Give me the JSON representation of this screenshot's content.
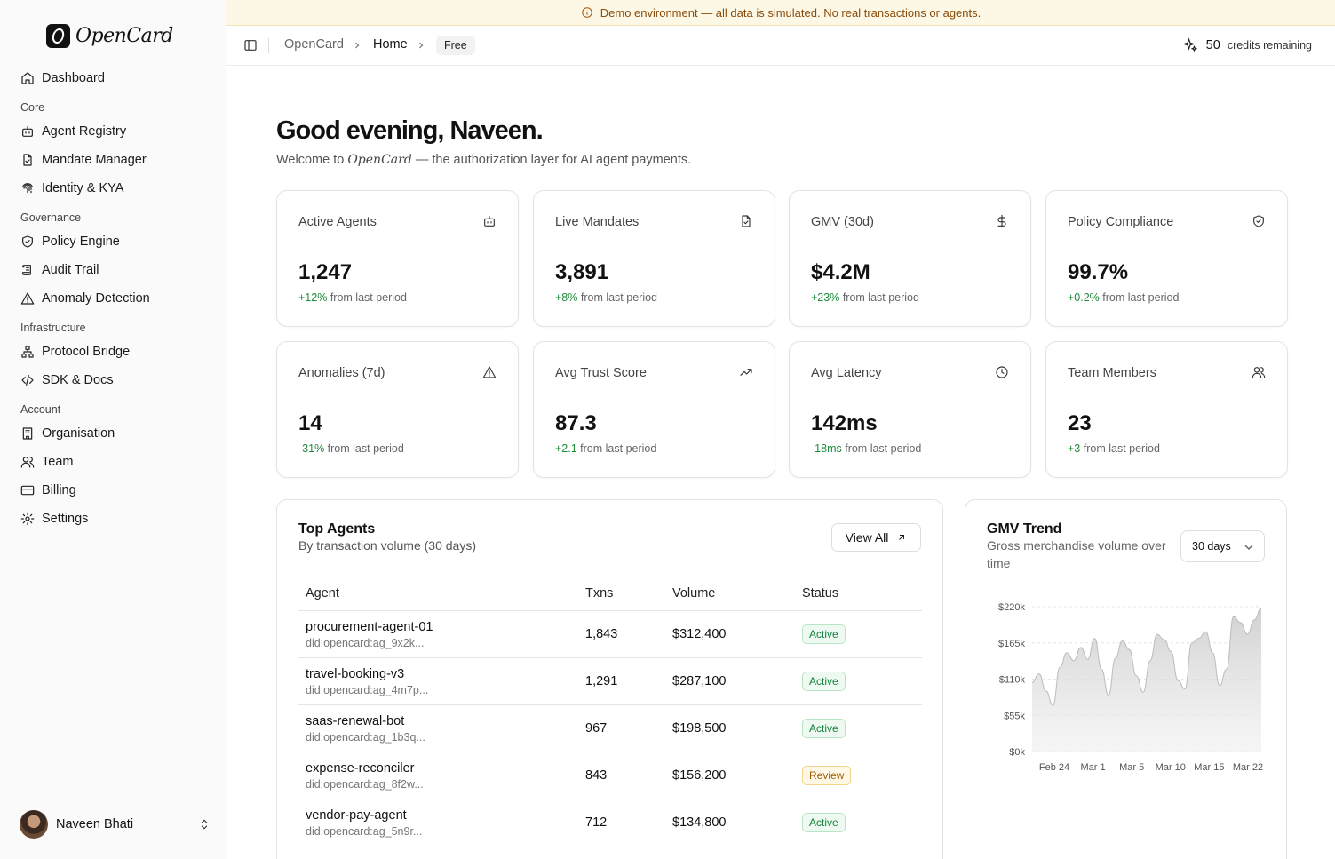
{
  "app": {
    "name": "OpenCard"
  },
  "banner": {
    "text": "Demo environment — all data is simulated. No real transactions or agents."
  },
  "sidebar": {
    "dashboard": "Dashboard",
    "sections": [
      {
        "label": "Core",
        "items": [
          "Agent Registry",
          "Mandate Manager",
          "Identity & KYA"
        ]
      },
      {
        "label": "Governance",
        "items": [
          "Policy Engine",
          "Audit Trail",
          "Anomaly Detection"
        ]
      },
      {
        "label": "Infrastructure",
        "items": [
          "Protocol Bridge",
          "SDK & Docs"
        ]
      },
      {
        "label": "Account",
        "items": [
          "Organisation",
          "Team",
          "Billing",
          "Settings"
        ]
      }
    ],
    "user": {
      "name": "Naveen Bhati"
    }
  },
  "header": {
    "breadcrumb": [
      "OpenCard",
      "Home"
    ],
    "plan_badge": "Free",
    "credits_value": "50",
    "credits_label": "credits remaining"
  },
  "greeting": {
    "prefix": "Good evening,",
    "name": "Naveen.",
    "welcome_before": "Welcome to",
    "welcome_brand": "OpenCard",
    "welcome_after": "— the authorization layer for AI agent payments."
  },
  "stats": [
    {
      "title": "Active Agents",
      "value": "1,247",
      "delta": "+12%",
      "delta_suffix": "from last period",
      "icon": "bot-icon"
    },
    {
      "title": "Live Mandates",
      "value": "3,891",
      "delta": "+8%",
      "delta_suffix": "from last period",
      "icon": "file-check-icon"
    },
    {
      "title": "GMV (30d)",
      "value": "$4.2M",
      "delta": "+23%",
      "delta_suffix": "from last period",
      "icon": "dollar-icon"
    },
    {
      "title": "Policy Compliance",
      "value": "99.7%",
      "delta": "+0.2%",
      "delta_suffix": "from last period",
      "icon": "shield-check-icon"
    },
    {
      "title": "Anomalies (7d)",
      "value": "14",
      "delta": "-31%",
      "delta_suffix": "from last period",
      "icon": "alert-triangle-icon"
    },
    {
      "title": "Avg Trust Score",
      "value": "87.3",
      "delta": "+2.1",
      "delta_suffix": "from last period",
      "icon": "trending-up-icon"
    },
    {
      "title": "Avg Latency",
      "value": "142ms",
      "delta": "-18ms",
      "delta_suffix": "from last period",
      "icon": "clock-icon"
    },
    {
      "title": "Team Members",
      "value": "23",
      "delta": "+3",
      "delta_suffix": "from last period",
      "icon": "users-icon"
    }
  ],
  "top_agents": {
    "title": "Top Agents",
    "subtitle": "By transaction volume (30 days)",
    "view_all": "View All",
    "columns": [
      "Agent",
      "Txns",
      "Volume",
      "Status"
    ],
    "rows": [
      {
        "name": "procurement-agent-01",
        "did": "did:opencard:ag_9x2k...",
        "txns": "1,843",
        "volume": "$312,400",
        "status": "Active"
      },
      {
        "name": "travel-booking-v3",
        "did": "did:opencard:ag_4m7p...",
        "txns": "1,291",
        "volume": "$287,100",
        "status": "Active"
      },
      {
        "name": "saas-renewal-bot",
        "did": "did:opencard:ag_1b3q...",
        "txns": "967",
        "volume": "$198,500",
        "status": "Active"
      },
      {
        "name": "expense-reconciler",
        "did": "did:opencard:ag_8f2w...",
        "txns": "843",
        "volume": "$156,200",
        "status": "Review"
      },
      {
        "name": "vendor-pay-agent",
        "did": "did:opencard:ag_5n9r...",
        "txns": "712",
        "volume": "$134,800",
        "status": "Active"
      }
    ]
  },
  "gmv_trend": {
    "title": "GMV Trend",
    "subtitle": "Gross merchandise volume over time",
    "range": "30 days"
  },
  "chart_data": {
    "type": "area",
    "title": "GMV Trend",
    "x_ticks": [
      "Feb 24",
      "Mar 1",
      "Mar 5",
      "Mar 10",
      "Mar 15",
      "Mar 22"
    ],
    "y_ticks": [
      "$0k",
      "$55k",
      "$110k",
      "$165k",
      "$220k"
    ],
    "ylim": [
      0,
      220000
    ],
    "grid": true,
    "series": [
      {
        "values": [
          105000,
          118000,
          92000,
          70000,
          128000,
          150000,
          138000,
          158000,
          140000,
          172000,
          125000,
          85000,
          142000,
          168000,
          155000,
          115000,
          90000,
          138000,
          178000,
          170000,
          152000,
          108000,
          95000,
          165000,
          172000,
          182000,
          150000,
          100000,
          125000,
          205000,
          196000,
          178000,
          200000,
          218000
        ]
      }
    ]
  }
}
